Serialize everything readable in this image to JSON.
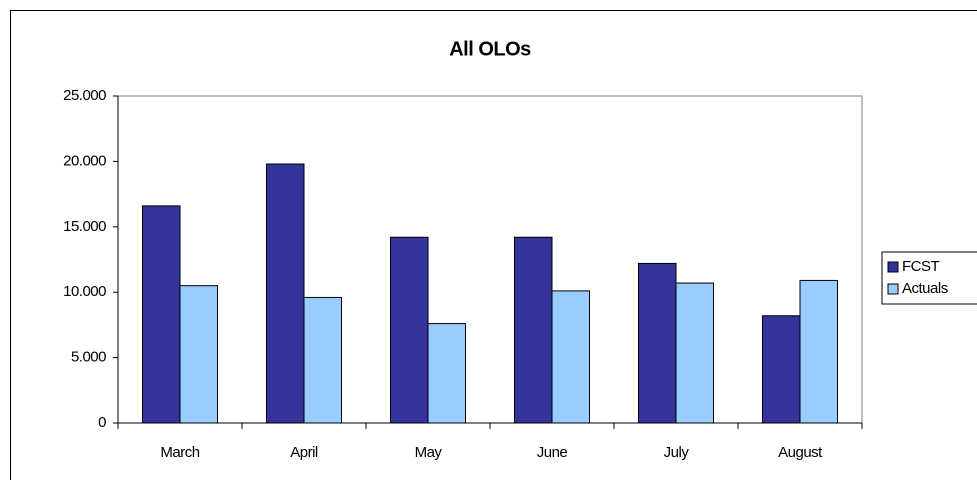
{
  "chart_data": {
    "type": "bar",
    "title": "All OLOs",
    "categories": [
      "March",
      "April",
      "May",
      "June",
      "July",
      "August"
    ],
    "series": [
      {
        "name": "FCST",
        "color": "#333399",
        "values": [
          16600,
          19800,
          14200,
          14200,
          12200,
          8200
        ]
      },
      {
        "name": "Actuals",
        "color": "#99ccff",
        "values": [
          10500,
          9600,
          7600,
          10100,
          10700,
          10900
        ]
      }
    ],
    "ylim": [
      0,
      25000
    ],
    "yticks": [
      0,
      {
        "value": 5000,
        "label": "5.000"
      },
      {
        "value": 10000,
        "label": "10.000"
      },
      {
        "value": 15000,
        "label": "15.000"
      },
      {
        "value": 20000,
        "label": "20.000"
      },
      {
        "value": 25000,
        "label": "25.000"
      }
    ],
    "legend": "right"
  }
}
